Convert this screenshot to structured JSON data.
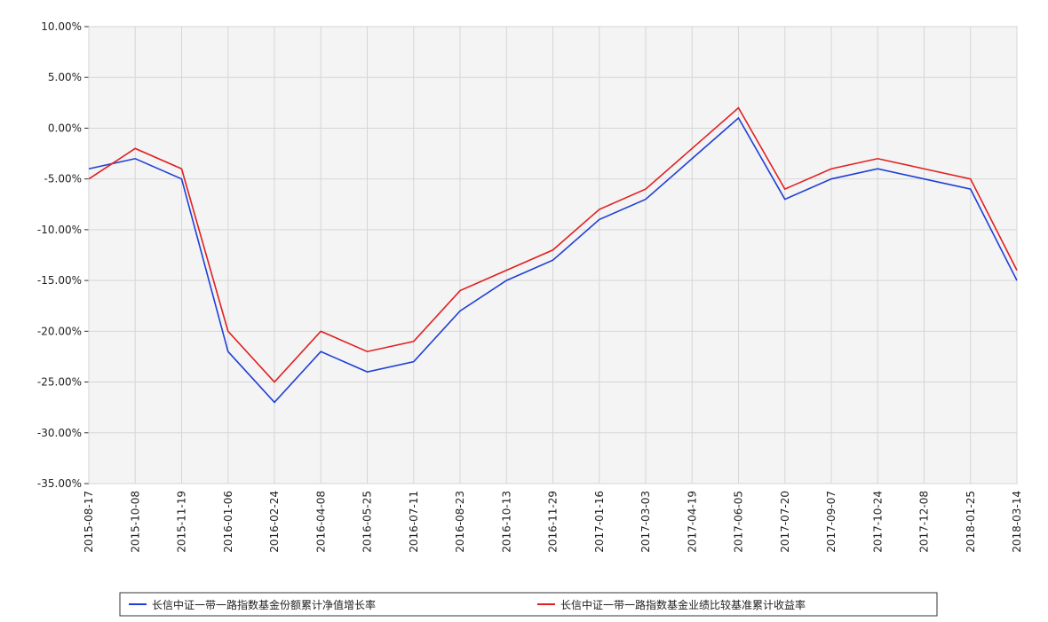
{
  "chart_data": {
    "type": "line",
    "categories": [
      "2015-08-17",
      "2015-10-08",
      "2015-11-19",
      "2016-01-06",
      "2016-02-24",
      "2016-04-08",
      "2016-05-25",
      "2016-07-11",
      "2016-08-23",
      "2016-10-13",
      "2016-11-29",
      "2017-01-16",
      "2017-03-03",
      "2017-04-19",
      "2017-06-05",
      "2017-07-20",
      "2017-09-07",
      "2017-10-24",
      "2017-12-08",
      "2018-01-25",
      "2018-03-14"
    ],
    "series": [
      {
        "name": "长信中证一带一路指数基金份额累计净值增长率",
        "color": "#1f3fd6",
        "values": [
          -4,
          -3,
          -5,
          -22,
          -27,
          -22,
          -24,
          -23,
          -18,
          -15,
          -13,
          -9,
          -7,
          -3,
          1,
          -7,
          -5,
          -4,
          -5,
          -6,
          -15
        ]
      },
      {
        "name": "长信中证一带一路指数基金业绩比较基准累计收益率",
        "color": "#e02020",
        "values": [
          -5,
          -2,
          -4,
          -20,
          -25,
          -20,
          -22,
          -21,
          -16,
          -14,
          -12,
          -8,
          -6,
          -2,
          2,
          -6,
          -4,
          -3,
          -4,
          -5,
          -14
        ]
      }
    ],
    "ylim": [
      -35,
      10
    ],
    "yticks": [
      {
        "value": -35,
        "label": "-35.00%"
      },
      {
        "value": -30,
        "label": "-30.00%"
      },
      {
        "value": -25,
        "label": "-25.00%"
      },
      {
        "value": -20,
        "label": "-20.00%"
      },
      {
        "value": -15,
        "label": "-15.00%"
      },
      {
        "value": -10,
        "label": "-10.00%"
      },
      {
        "value": -5,
        "label": "-5.00%"
      },
      {
        "value": 0,
        "label": "0.00%"
      },
      {
        "value": 5,
        "label": "5.00%"
      },
      {
        "value": 10,
        "label": "10.00%"
      }
    ],
    "grid": true
  }
}
